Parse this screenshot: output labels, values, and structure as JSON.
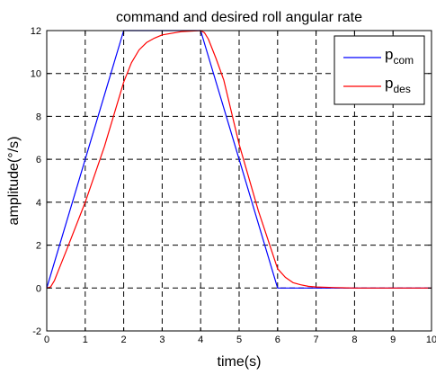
{
  "chart_data": {
    "type": "line",
    "title": "command and desired roll angular rate",
    "xlabel": "time(s)",
    "ylabel": "amplitude(°/s)",
    "xlim": [
      0,
      10
    ],
    "ylim": [
      -2,
      12
    ],
    "xticks": [
      0,
      1,
      2,
      3,
      4,
      5,
      6,
      7,
      8,
      9,
      10
    ],
    "yticks": [
      -2,
      0,
      2,
      4,
      6,
      8,
      10,
      12
    ],
    "grid": true,
    "legend_position": "top-right",
    "series": [
      {
        "name": "p_com",
        "legend_main": "p",
        "legend_sub": "com",
        "color": "#0000ff",
        "x": [
          0,
          2,
          4,
          6,
          10
        ],
        "y": [
          0,
          12,
          12,
          0,
          0
        ]
      },
      {
        "name": "p_des",
        "legend_main": "p",
        "legend_sub": "des",
        "color": "#ff0000",
        "x": [
          0,
          0.1,
          0.2,
          0.3,
          0.5,
          1,
          1.5,
          2,
          2.2,
          2.4,
          2.6,
          2.8,
          3,
          3.5,
          4,
          4.1,
          4.2,
          4.4,
          4.6,
          5,
          5.5,
          6,
          6.2,
          6.4,
          6.6,
          6.8,
          7,
          7.5,
          8,
          10
        ],
        "y": [
          0,
          0.05,
          0.35,
          0.8,
          1.7,
          4.0,
          6.6,
          9.6,
          10.5,
          11.1,
          11.45,
          11.65,
          11.8,
          11.95,
          12.0,
          11.9,
          11.6,
          10.7,
          9.7,
          6.7,
          3.6,
          0.9,
          0.5,
          0.25,
          0.15,
          0.08,
          0.05,
          0.02,
          0.0,
          0.0
        ]
      }
    ]
  }
}
